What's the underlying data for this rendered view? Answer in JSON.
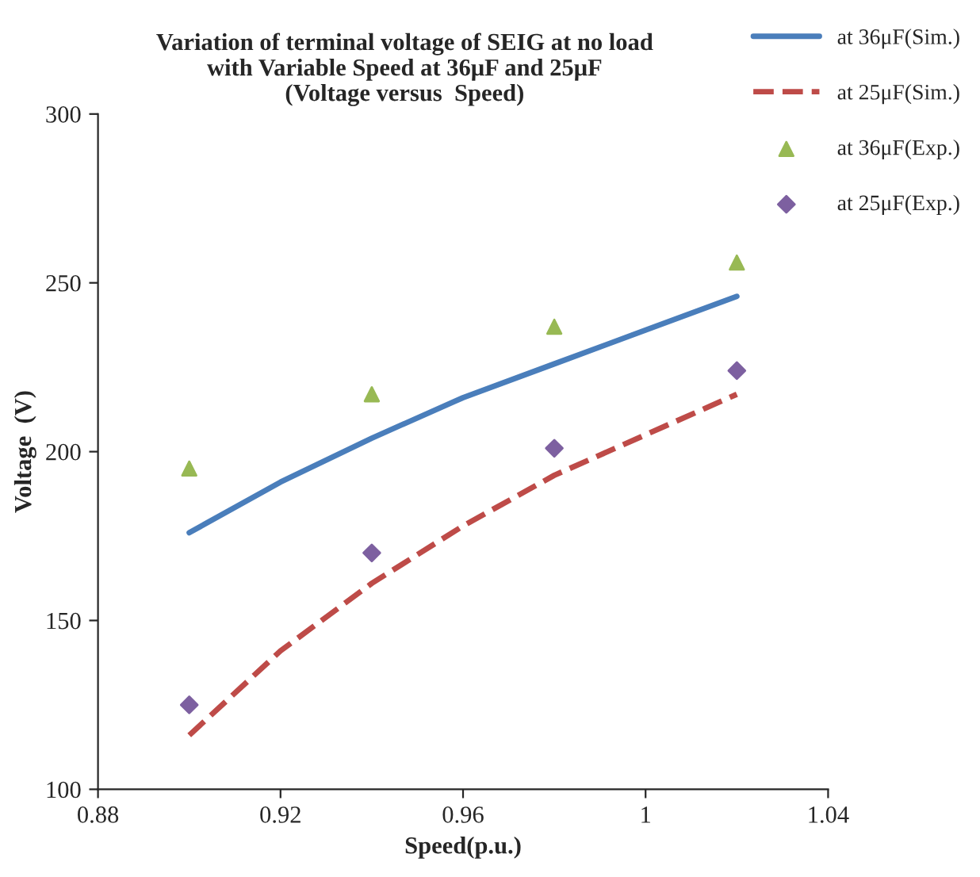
{
  "chart_data": {
    "type": "line",
    "title": "Variation of terminal voltage of SEIG at no load\nwith Variable Speed at 36μF and 25μF\n(Voltage versus  Speed)",
    "xlabel": "Speed(p.u.)",
    "ylabel": "Voltage  (V)",
    "series": [
      {
        "name": "at 36μF(Sim.)",
        "color": "#4a7ebb",
        "line_style": "solid",
        "x": [
          0.9,
          0.92,
          0.94,
          0.96,
          0.98,
          1.0,
          1.02
        ],
        "values": [
          176,
          191,
          204,
          216,
          226,
          236,
          246
        ]
      },
      {
        "name": "at 25μF(Sim.)",
        "color": "#be4b48",
        "line_style": "dashed",
        "x": [
          0.9,
          0.92,
          0.94,
          0.96,
          0.98,
          1.0,
          1.02
        ],
        "values": [
          116,
          141,
          161,
          178,
          193,
          205,
          217
        ]
      },
      {
        "name": "at 36μF(Exp.)",
        "color": "#98b954",
        "type": "scatter",
        "marker": "triangle",
        "x": [
          0.9,
          0.94,
          0.98,
          1.02
        ],
        "values": [
          195,
          217,
          237,
          256
        ]
      },
      {
        "name": "at 25μF(Exp.)",
        "color": "#7d60a0",
        "type": "scatter",
        "marker": "diamond",
        "x": [
          0.9,
          0.94,
          0.98,
          1.02
        ],
        "values": [
          125,
          170,
          201,
          224
        ]
      }
    ],
    "xlim": [
      0.88,
      1.04
    ],
    "xticks": [
      {
        "value": 0.88,
        "label": "0.88"
      },
      {
        "value": 0.92,
        "label": "0.92"
      },
      {
        "value": 0.96,
        "label": "0.96"
      },
      1,
      {
        "value": 1.04,
        "label": "1.04"
      }
    ],
    "ylim": [
      100,
      300
    ],
    "yticks": [
      100,
      150,
      200,
      250,
      300
    ],
    "grid": false,
    "legend": "top right"
  }
}
